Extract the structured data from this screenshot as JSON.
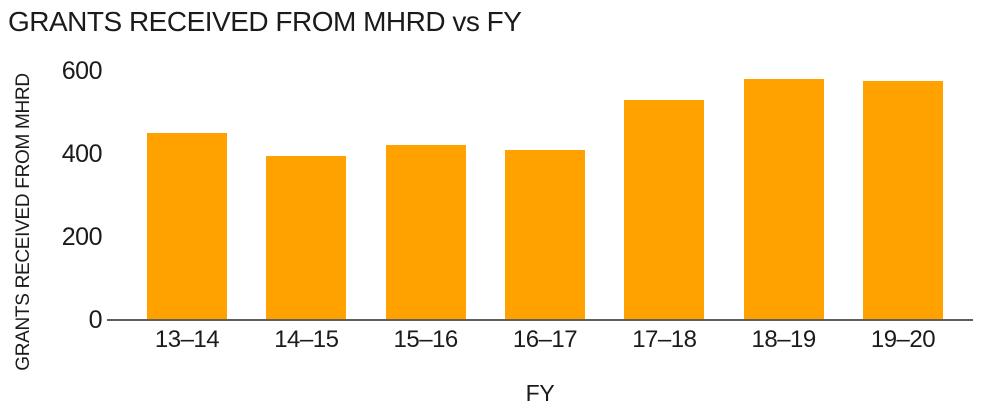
{
  "chart_data": {
    "type": "bar",
    "title": "GRANTS RECEIVED FROM MHRD vs FY",
    "xlabel": "FY",
    "ylabel": "GRANTS RECEIVED FROM MHRD",
    "categories": [
      "13–14",
      "14–15",
      "15–16",
      "16–17",
      "17–18",
      "18–19",
      "19–20"
    ],
    "values": [
      450,
      395,
      420,
      410,
      530,
      580,
      575
    ],
    "ylim": [
      0,
      600
    ],
    "yticks": [
      0,
      200,
      400,
      600
    ],
    "grid": false,
    "legend": "none",
    "bar_color": "#FFA200",
    "axis_color": "#5E5E5E",
    "text_color": "#1B1B1B"
  }
}
